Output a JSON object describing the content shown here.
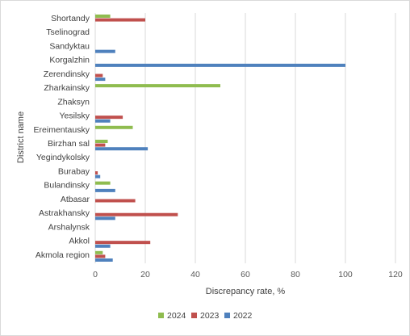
{
  "chart_data": {
    "type": "bar",
    "orientation": "horizontal",
    "title": "",
    "xlabel": "Discrepancy rate, %",
    "ylabel": "District name",
    "xlim": [
      0,
      120
    ],
    "xticks": [
      0,
      20,
      40,
      60,
      80,
      100,
      120
    ],
    "grid": true,
    "legend_position": "bottom",
    "categories": [
      "Shortandy",
      "Tselinograd",
      "Sandyktau",
      "Korgalzhin",
      "Zerendinsky",
      "Zharkainsky",
      "Zhaksyn",
      "Yesilsky",
      "Ereimentausky",
      "Birzhan sal",
      "Yegindykolsky",
      "Burabay",
      "Bulandinsky",
      "Atbasar",
      "Astrakhansky",
      "Arshalynsk",
      "Akkol",
      "Akmola region"
    ],
    "series": [
      {
        "name": "2024",
        "color": "#8fbc4f",
        "values": [
          6,
          0,
          0,
          0,
          0,
          50,
          0,
          0,
          15,
          5,
          0,
          0,
          6,
          0,
          0,
          0,
          0,
          3
        ]
      },
      {
        "name": "2023",
        "color": "#c0504d",
        "values": [
          20,
          0,
          0,
          0,
          3,
          0,
          0,
          11,
          0,
          4,
          0,
          1,
          0,
          16,
          33,
          0,
          22,
          4
        ]
      },
      {
        "name": "2022",
        "color": "#4f81bd",
        "values": [
          0,
          0,
          8,
          100,
          4,
          0,
          0,
          6,
          0,
          21,
          0,
          2,
          8,
          0,
          8,
          0,
          6,
          7
        ]
      }
    ],
    "legend_order": [
      "2024",
      "2023",
      "2022"
    ]
  }
}
